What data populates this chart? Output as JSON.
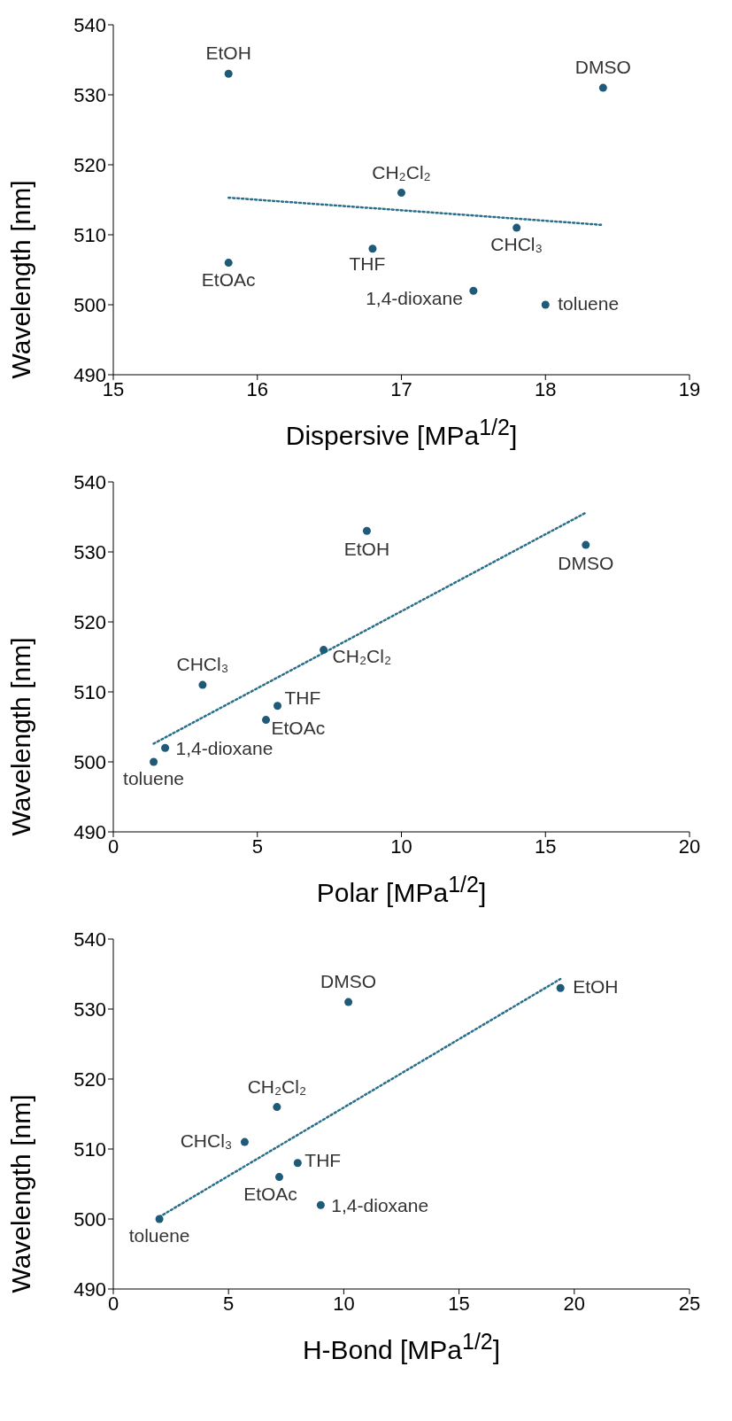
{
  "chart_data": [
    {
      "type": "scatter",
      "xlabel": "Dispersive [MPa$^{1/2}$]",
      "ylabel": "Wavelength [nm]",
      "xlim": [
        15,
        19
      ],
      "xticks": [
        15,
        16,
        17,
        18,
        19
      ],
      "ylim": [
        490,
        540
      ],
      "yticks": [
        490,
        500,
        510,
        520,
        530,
        540
      ],
      "grid": false,
      "series": [
        {
          "color": "#1f5a78",
          "marker": "circle",
          "x": [
            15.8,
            18.4,
            17.0,
            17.8,
            16.8,
            15.8,
            17.5,
            18.0
          ],
          "values": [
            533,
            531,
            516,
            511,
            508,
            506,
            502,
            500
          ]
        },
        {
          "type": "line",
          "color": "#2a6f8a",
          "line_style": "dotted",
          "marker": "none",
          "x": [
            15.8,
            18.4
          ],
          "values": [
            515.3,
            511.4
          ]
        }
      ],
      "annotations": [
        {
          "text": "EtOH",
          "x": 15.8,
          "y": 533
        },
        {
          "text": "DMSO",
          "x": 18.4,
          "y": 531
        },
        {
          "text": "CH₂Cl₂",
          "x": 17.0,
          "y": 516
        },
        {
          "text": "CHCl₃",
          "x": 17.8,
          "y": 511
        },
        {
          "text": "THF",
          "x": 16.8,
          "y": 508
        },
        {
          "text": "EtOAc",
          "x": 15.8,
          "y": 506
        },
        {
          "text": "1,4-dioxane",
          "x": 17.5,
          "y": 502
        },
        {
          "text": "toluene",
          "x": 18.0,
          "y": 500
        }
      ]
    },
    {
      "type": "scatter",
      "xlabel": "Polar [MPa$^{1/2}$]",
      "ylabel": "Wavelength [nm]",
      "xlim": [
        0,
        20
      ],
      "xticks": [
        0,
        5,
        10,
        15,
        20
      ],
      "ylim": [
        490,
        540
      ],
      "yticks": [
        490,
        500,
        510,
        520,
        530,
        540
      ],
      "grid": false,
      "series": [
        {
          "color": "#1f5a78",
          "marker": "circle",
          "x": [
            8.8,
            16.4,
            7.3,
            3.1,
            5.7,
            5.3,
            1.8,
            1.4
          ],
          "values": [
            533,
            531,
            516,
            511,
            508,
            506,
            502,
            500
          ]
        },
        {
          "type": "line",
          "color": "#2a6f8a",
          "line_style": "dotted",
          "marker": "none",
          "x": [
            1.4,
            16.4
          ],
          "values": [
            502.6,
            535.6
          ]
        }
      ],
      "annotations": [
        {
          "text": "EtOH",
          "x": 8.8,
          "y": 533
        },
        {
          "text": "DMSO",
          "x": 16.4,
          "y": 531
        },
        {
          "text": "CH₂Cl₂",
          "x": 7.3,
          "y": 516
        },
        {
          "text": "CHCl₃",
          "x": 3.1,
          "y": 511
        },
        {
          "text": "THF",
          "x": 5.7,
          "y": 508
        },
        {
          "text": "EtOAc",
          "x": 5.3,
          "y": 506
        },
        {
          "text": "1,4-dioxane",
          "x": 1.8,
          "y": 502
        },
        {
          "text": "toluene",
          "x": 1.4,
          "y": 500
        }
      ]
    },
    {
      "type": "scatter",
      "xlabel": "H-Bond [MPa$^{1/2}$]",
      "ylabel": "Wavelength [nm]",
      "xlim": [
        0,
        25
      ],
      "xticks": [
        0,
        5,
        10,
        15,
        20,
        25
      ],
      "ylim": [
        490,
        540
      ],
      "yticks": [
        490,
        500,
        510,
        520,
        530,
        540
      ],
      "grid": false,
      "series": [
        {
          "color": "#1f5a78",
          "marker": "circle",
          "x": [
            19.4,
            10.2,
            7.1,
            5.7,
            8.0,
            7.2,
            9.0,
            2.0
          ],
          "values": [
            533,
            531,
            516,
            511,
            508,
            506,
            502,
            500
          ]
        },
        {
          "type": "line",
          "color": "#2a6f8a",
          "line_style": "dotted",
          "marker": "none",
          "x": [
            2.0,
            19.4
          ],
          "values": [
            500.3,
            534.3
          ]
        }
      ],
      "annotations": [
        {
          "text": "EtOH",
          "x": 19.4,
          "y": 533
        },
        {
          "text": "DMSO",
          "x": 10.2,
          "y": 531
        },
        {
          "text": "CH₂Cl₂",
          "x": 7.1,
          "y": 516
        },
        {
          "text": "CHCl₃",
          "x": 5.7,
          "y": 511
        },
        {
          "text": "THF",
          "x": 8.0,
          "y": 508
        },
        {
          "text": "EtOAc",
          "x": 7.2,
          "y": 506
        },
        {
          "text": "1,4-dioxane",
          "x": 9.0,
          "y": 502
        },
        {
          "text": "toluene",
          "x": 2.0,
          "y": 500
        }
      ]
    }
  ]
}
